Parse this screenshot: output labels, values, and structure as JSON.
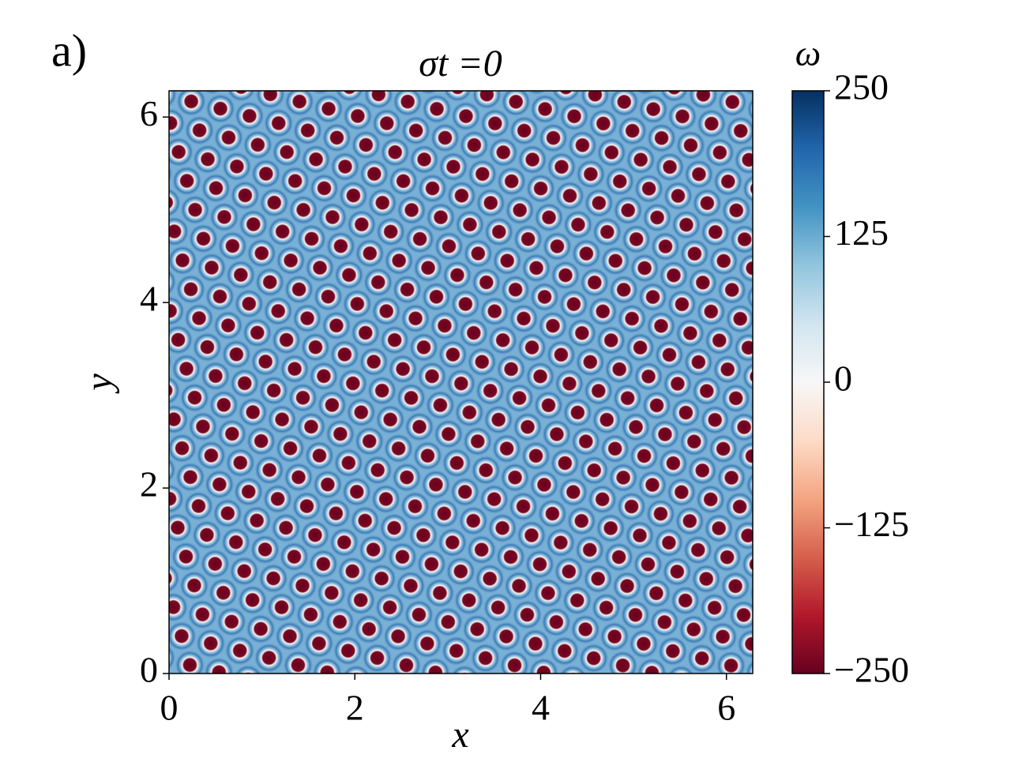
{
  "chart_data": {
    "type": "heatmap",
    "panel_label": "a)",
    "title": "σt =0",
    "xlabel": "x",
    "ylabel": "y",
    "xlim": [
      0,
      6.283
    ],
    "xticks": [
      0,
      2,
      4,
      6
    ],
    "ylim": [
      0,
      6.283
    ],
    "yticks": [
      0,
      2,
      4,
      6
    ],
    "colormap": "RdBu",
    "colorbar_label": "ω",
    "clim": [
      -250,
      250
    ],
    "cticks": [
      {
        "value": -250,
        "label": "−250"
      },
      {
        "value": -125,
        "label": "−125"
      },
      0,
      125,
      250
    ]
  }
}
